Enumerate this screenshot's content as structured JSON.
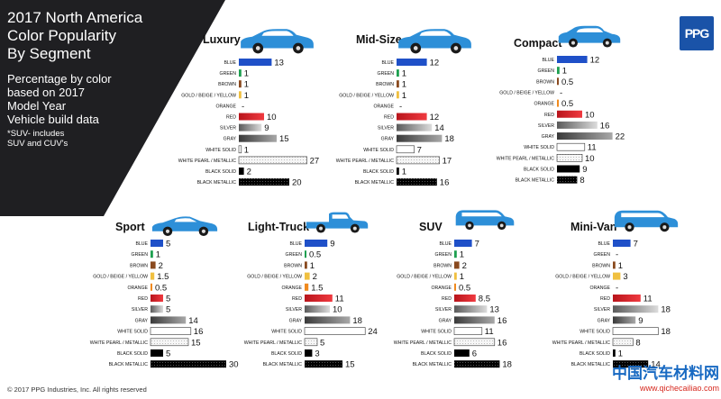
{
  "title_lines": [
    "2017 North America",
    "Color Popularity",
    "By Segment"
  ],
  "subtitle_lines": [
    "Percentage by color",
    "based on 2017",
    "Model Year",
    "Vehicle build data"
  ],
  "note_lines": [
    "*SUV- includes",
    "SUV and CUV's"
  ],
  "copyright": "© 2017 PPG Industries, Inc. All rights reserved",
  "logo_text": "PPG",
  "watermark": {
    "cn": "中国汽车材料网",
    "url": "www.qichecailiao.com"
  },
  "colors": {
    "panel_dark": "#1f1f22",
    "car_blue": "#2d8fd8",
    "blue": "#1f50c8",
    "green": "#1ea050",
    "brown": "#8a4a1f",
    "gold": "#f0c040",
    "orange": "#f08a1e",
    "red": "#e01c24",
    "silver": "#a0a0a0",
    "gray": "#6e6e6e",
    "white_solid": "#ffffff",
    "white_pearl": "#f4f4f4",
    "black_solid": "#000000",
    "black_metallic": "#1a1a1a"
  },
  "chart_data": {
    "type": "bar",
    "orientation": "horizontal",
    "unit": "percent",
    "categories": [
      "BLUE",
      "GREEN",
      "BROWN",
      "GOLD / BEIGE / YELLOW",
      "ORANGE",
      "RED",
      "SILVER",
      "GRAY",
      "WHITE SOLID",
      "WHITE PEARL / METALLIC",
      "BLACK SOLID",
      "BLACK METALLIC"
    ],
    "series": [
      {
        "name": "Luxury",
        "labels": [
          "13",
          "1",
          "1",
          "1",
          "-",
          "10",
          "9",
          "15",
          "1",
          "27",
          "2",
          "20"
        ],
        "values": [
          13,
          1,
          1,
          1,
          0,
          10,
          9,
          15,
          1,
          27,
          2,
          20
        ]
      },
      {
        "name": "Mid-Size",
        "labels": [
          "12",
          "1",
          "1",
          "1",
          "-",
          "12",
          "14",
          "18",
          "7",
          "17",
          "1",
          "16"
        ],
        "values": [
          12,
          1,
          1,
          1,
          0,
          12,
          14,
          18,
          7,
          17,
          1,
          16
        ]
      },
      {
        "name": "Compact",
        "labels": [
          "12",
          "1",
          "0.5",
          "-",
          "0.5",
          "10",
          "16",
          "22",
          "11",
          "10",
          "9",
          "8"
        ],
        "values": [
          12,
          1,
          0.5,
          0,
          0.5,
          10,
          16,
          22,
          11,
          10,
          9,
          8
        ]
      },
      {
        "name": "Sport",
        "labels": [
          "5",
          "1",
          "2",
          "1.5",
          "0.5",
          "5",
          "5",
          "14",
          "16",
          "15",
          "5",
          "30"
        ],
        "values": [
          5,
          1,
          2,
          1.5,
          0.5,
          5,
          5,
          14,
          16,
          15,
          5,
          30
        ]
      },
      {
        "name": "Light-Truck",
        "labels": [
          "9",
          "0.5",
          "1",
          "2",
          "1.5",
          "11",
          "10",
          "18",
          "24",
          "5",
          "3",
          "15"
        ],
        "values": [
          9,
          0.5,
          1,
          2,
          1.5,
          11,
          10,
          18,
          24,
          5,
          3,
          15
        ]
      },
      {
        "name": "SUV",
        "labels": [
          "7",
          "1",
          "2",
          "1",
          "0.5",
          "8.5",
          "13",
          "16",
          "11",
          "16",
          "6",
          "18"
        ],
        "values": [
          7,
          1,
          2,
          1,
          0.5,
          8.5,
          13,
          16,
          11,
          16,
          6,
          18
        ]
      },
      {
        "name": "Mini-Van",
        "labels": [
          "7",
          "-",
          "1",
          "3",
          "-",
          "11",
          "18",
          "9",
          "18",
          "8",
          "1",
          "14"
        ],
        "values": [
          7,
          0,
          1,
          3,
          0,
          11,
          18,
          9,
          18,
          8,
          1,
          14
        ]
      }
    ]
  }
}
